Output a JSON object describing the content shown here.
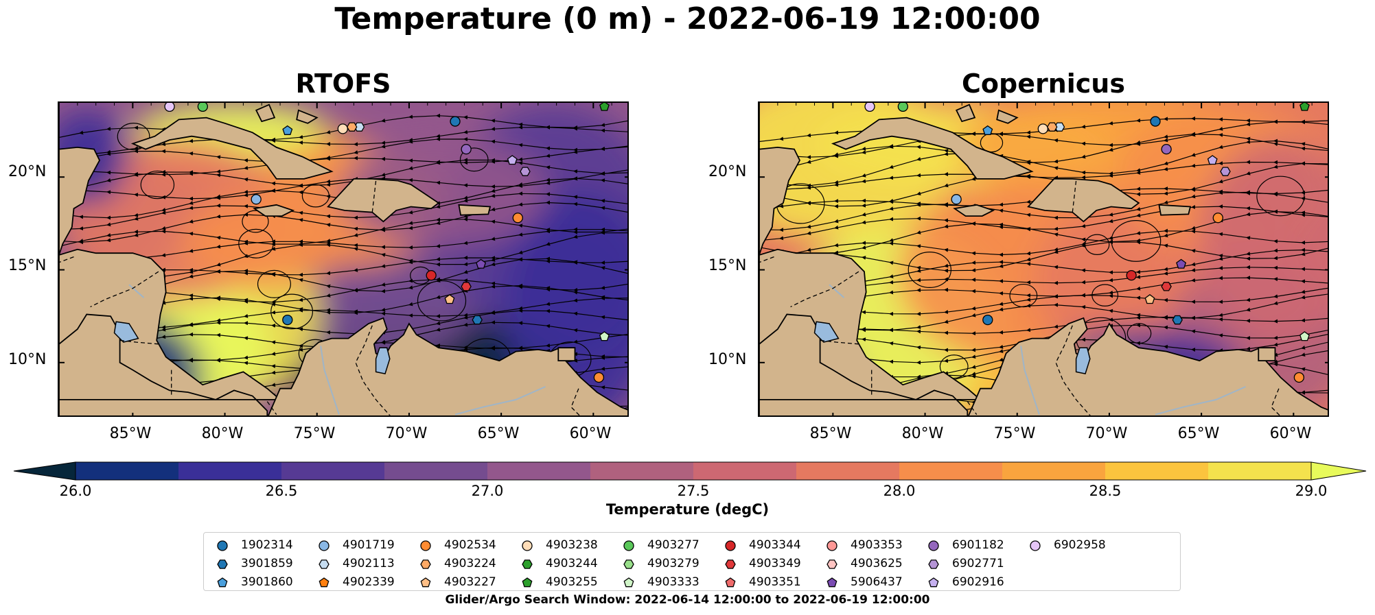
{
  "figure": {
    "title": "Temperature (0 m) - 2022-06-19 12:00:00",
    "panels": [
      {
        "title": "RTOFS",
        "palette": "rtofs"
      },
      {
        "title": "Copernicus",
        "palette": "copernicus"
      }
    ],
    "y_ticks": [
      "20°N",
      "15°N",
      "10°N"
    ],
    "x_ticks": [
      "85°W",
      "80°W",
      "75°W",
      "70°W",
      "65°W",
      "60°W"
    ],
    "lon_range": [
      -89,
      -58
    ],
    "lat_range": [
      7,
      24
    ],
    "land_color": "#d2b48c",
    "lake_color": "#99bbdd"
  },
  "colorbar": {
    "label": "Temperature (degC)",
    "ticks": [
      "26.0",
      "26.5",
      "27.0",
      "27.5",
      "28.0",
      "28.5",
      "29.0"
    ],
    "range": [
      26.0,
      29.0
    ],
    "extend": "both",
    "colors": [
      "#06263a",
      "#13307c",
      "#3a2f98",
      "#563a94",
      "#754c8f",
      "#93578c",
      "#b0617e",
      "#cd6872",
      "#e57960",
      "#f68e4b",
      "#f9a43e",
      "#fbc43e",
      "#f4e24d",
      "#e8fa5b"
    ]
  },
  "legend": {
    "items": [
      {
        "id": "1902314",
        "marker": "circle",
        "color": "#1f77b4"
      },
      {
        "id": "3901859",
        "marker": "hexagon",
        "color": "#1f77b4"
      },
      {
        "id": "3901860",
        "marker": "pentagon",
        "color": "#4a9fdc"
      },
      {
        "id": "4901719",
        "marker": "circle",
        "color": "#8ab8e6"
      },
      {
        "id": "4902113",
        "marker": "hexagon",
        "color": "#c6ddf1"
      },
      {
        "id": "4902339",
        "marker": "pentagon",
        "color": "#ff7f0e"
      },
      {
        "id": "4902534",
        "marker": "circle",
        "color": "#ff8c33"
      },
      {
        "id": "4903224",
        "marker": "hexagon",
        "color": "#ffaa66"
      },
      {
        "id": "4903227",
        "marker": "pentagon",
        "color": "#ffbf86"
      },
      {
        "id": "4903238",
        "marker": "circle",
        "color": "#ffddb8"
      },
      {
        "id": "4903244",
        "marker": "hexagon",
        "color": "#2ca02c"
      },
      {
        "id": "4903255",
        "marker": "pentagon",
        "color": "#2ca02c"
      },
      {
        "id": "4903277",
        "marker": "circle",
        "color": "#5ac85a"
      },
      {
        "id": "4903279",
        "marker": "hexagon",
        "color": "#98df8a"
      },
      {
        "id": "4903333",
        "marker": "pentagon",
        "color": "#d0f5c8"
      },
      {
        "id": "4903344",
        "marker": "circle",
        "color": "#d62728"
      },
      {
        "id": "4903349",
        "marker": "hexagon",
        "color": "#e0383a"
      },
      {
        "id": "4903351",
        "marker": "pentagon",
        "color": "#ef6b6b"
      },
      {
        "id": "4903353",
        "marker": "circle",
        "color": "#ff9896"
      },
      {
        "id": "4903625",
        "marker": "hexagon",
        "color": "#ffc4c2"
      },
      {
        "id": "5906437",
        "marker": "pentagon",
        "color": "#7b4cb3"
      },
      {
        "id": "6901182",
        "marker": "circle",
        "color": "#9467bd"
      },
      {
        "id": "6902771",
        "marker": "hexagon",
        "color": "#b594d6"
      },
      {
        "id": "6902916",
        "marker": "pentagon",
        "color": "#c5b0ef"
      },
      {
        "id": "6902958",
        "marker": "circle",
        "color": "#e6c6f7"
      }
    ]
  },
  "floats": [
    {
      "id": "1902314",
      "lon": -67.5,
      "lat": 23.0
    },
    {
      "id": "4901719",
      "lon": -78.3,
      "lat": 18.8
    },
    {
      "id": "4902113",
      "lon": -72.7,
      "lat": 22.7
    },
    {
      "id": "4903224",
      "lon": -73.1,
      "lat": 22.7
    },
    {
      "id": "4903238",
      "lon": -73.6,
      "lat": 22.6
    },
    {
      "id": "3901860",
      "lon": -76.6,
      "lat": 22.5
    },
    {
      "id": "4903277",
      "lon": -81.2,
      "lat": 23.8
    },
    {
      "id": "4903255",
      "lon": -59.4,
      "lat": 23.8
    },
    {
      "id": "6902958",
      "lon": -83.0,
      "lat": 23.8
    },
    {
      "id": "6901182",
      "lon": -66.9,
      "lat": 21.5
    },
    {
      "id": "6902916",
      "lon": -64.4,
      "lat": 20.9
    },
    {
      "id": "6902771",
      "lon": -63.7,
      "lat": 20.3
    },
    {
      "id": "4902534",
      "lon": -64.1,
      "lat": 17.8
    },
    {
      "id": "5906437",
      "lon": -66.1,
      "lat": 15.3
    },
    {
      "id": "4903344",
      "lon": -68.8,
      "lat": 14.7
    },
    {
      "id": "4903349",
      "lon": -66.9,
      "lat": 14.1
    },
    {
      "id": "4903227",
      "lon": -67.8,
      "lat": 13.4
    },
    {
      "id": "3901859",
      "lon": -66.3,
      "lat": 12.3
    },
    {
      "id": "1902314",
      "lon": -76.6,
      "lat": 12.3
    },
    {
      "id": "4903333",
      "lon": -59.4,
      "lat": 11.4
    },
    {
      "id": "4902534",
      "lon": -59.7,
      "lat": 9.2
    }
  ],
  "footer": "Glider/Argo Search Window: 2022-06-14 12:00:00 to 2022-06-19 12:00:00"
}
